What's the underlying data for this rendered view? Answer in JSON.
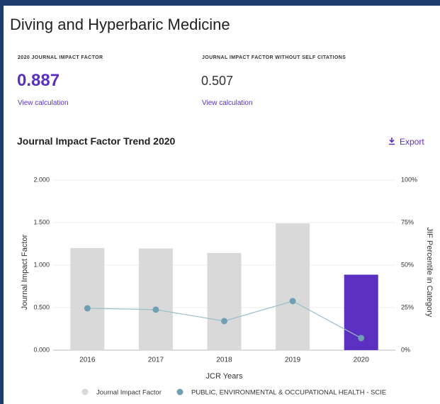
{
  "header": {
    "title": "Diving and Hyperbaric Medicine",
    "metrics": [
      {
        "label": "2020 JOURNAL IMPACT FACTOR",
        "value": "0.887",
        "link": "View calculation"
      },
      {
        "label": "JOURNAL IMPACT FACTOR WITHOUT SELF CITATIONS",
        "value": "0.507",
        "link": "View calculation"
      }
    ]
  },
  "chart_data": {
    "type": "bar",
    "title": "Journal Impact Factor Trend 2020",
    "export": "Export",
    "xlabel": "JCR Years",
    "ylabel": "Journal Impact Factor",
    "y2label": "JIF Percentile in Category",
    "categories": [
      "2016",
      "2017",
      "2018",
      "2019",
      "2020"
    ],
    "series": [
      {
        "name": "Journal Impact Factor",
        "type": "bar",
        "color": "#d9d9d9",
        "colors": [
          "#d9d9d9",
          "#d9d9d9",
          "#d9d9d9",
          "#d9d9d9",
          "#5b2fbf"
        ],
        "values": [
          1.2,
          1.195,
          1.142,
          1.49,
          0.887
        ]
      },
      {
        "name": "PUBLIC, ENVIRONMENTAL & OCCUPATIONAL HEALTH - SCIE",
        "type": "line",
        "axis": "y2",
        "color": "#6e9fb2",
        "line_color": "#9bbccb",
        "values": [
          24.6,
          23.8,
          17.1,
          28.8,
          7.1
        ]
      }
    ],
    "ylim": [
      0,
      2
    ],
    "yticks": [
      {
        "value": 0,
        "label": "0.000"
      },
      {
        "value": 0.5,
        "label": "0.500"
      },
      {
        "value": 1,
        "label": "1.000"
      },
      {
        "value": 1.5,
        "label": "1.500"
      },
      {
        "value": 2,
        "label": "2.000"
      }
    ],
    "y2lim": [
      0,
      100
    ],
    "y2ticks": [
      {
        "value": 0,
        "label": "0%"
      },
      {
        "value": 25,
        "label": "25%"
      },
      {
        "value": 50,
        "label": "50%"
      },
      {
        "value": 75,
        "label": "75%"
      },
      {
        "value": 100,
        "label": "100%"
      }
    ],
    "grid": true
  }
}
